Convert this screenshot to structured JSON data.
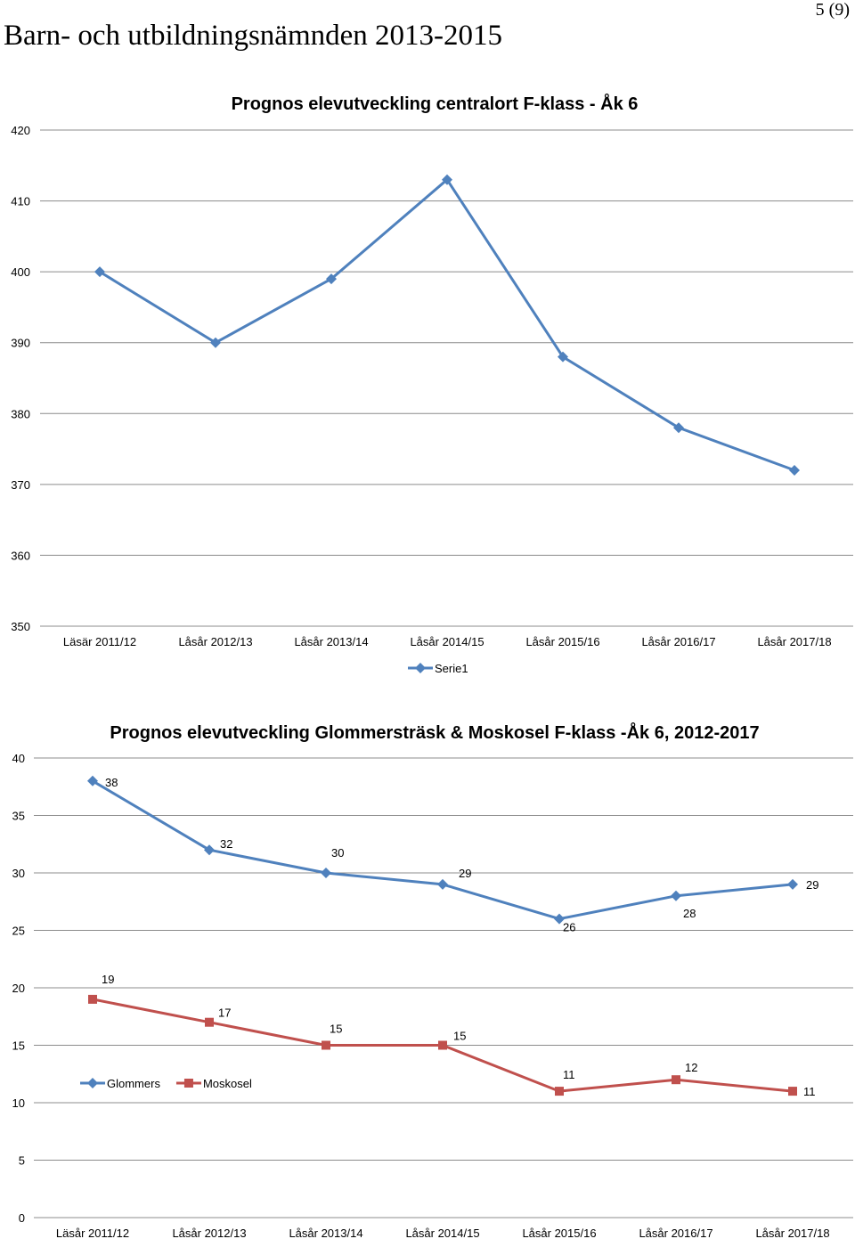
{
  "header": {
    "title": "Barn- och utbildningsnämnden 2013-2015",
    "page_number": "5 (9)"
  },
  "chart_data": [
    {
      "type": "line",
      "title": "Prognos elevutveckling centralort F-klass - Åk 6",
      "categories": [
        "Läsär 2011/12",
        "Låsår 2012/13",
        "Låsår 2013/14",
        "Låsår 2014/15",
        "Låsår 2015/16",
        "Låsår 2016/17",
        "Låsår 2017/18"
      ],
      "series": [
        {
          "name": "Serie1",
          "values": [
            400,
            390,
            399,
            413,
            388,
            378,
            372
          ],
          "color": "#4f81bd",
          "marker": "diamond"
        }
      ],
      "y_ticks": [
        350,
        360,
        370,
        380,
        390,
        400,
        410,
        420
      ],
      "ylim": [
        350,
        420
      ],
      "grid": true,
      "legend": "bottom"
    },
    {
      "type": "line",
      "title": "Prognos elevutveckling Glommersträsk & Moskosel F-klass -Åk 6, 2012-2017",
      "categories": [
        "Läsår 2011/12",
        "Låsår 2012/13",
        "Låsår 2013/14",
        "Låsår 2014/15",
        "Låsår 2015/16",
        "Låsår 2016/17",
        "Låsår 2017/18"
      ],
      "series": [
        {
          "name": "Glommers",
          "values": [
            38,
            32,
            30,
            29,
            26,
            28,
            29
          ],
          "color": "#4f81bd",
          "marker": "diamond"
        },
        {
          "name": "Moskosel",
          "values": [
            19,
            17,
            15,
            15,
            11,
            12,
            11
          ],
          "color": "#c0504d",
          "marker": "square"
        }
      ],
      "y_ticks": [
        0,
        5,
        10,
        15,
        20,
        25,
        30,
        35,
        40
      ],
      "ylim": [
        0,
        40
      ],
      "grid": true,
      "data_labels": true,
      "legend": "inside-left"
    }
  ]
}
